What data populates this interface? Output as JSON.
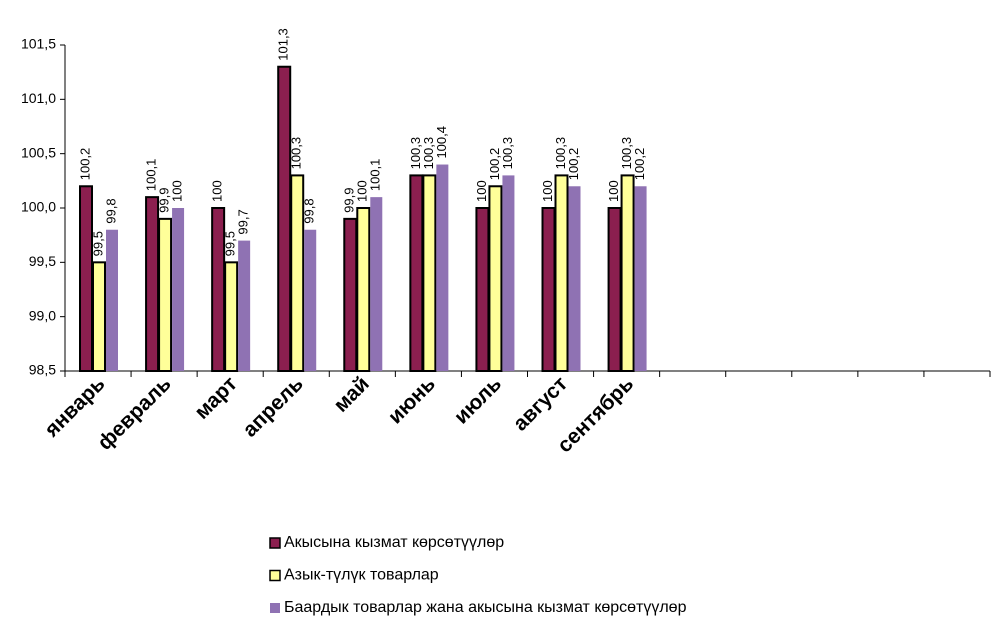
{
  "chart_data": {
    "type": "bar",
    "categories": [
      "январь",
      "февраль",
      "март",
      "апрель",
      "май",
      "июнь",
      "июль",
      "август",
      "сентябрь",
      null,
      null,
      null,
      null,
      null
    ],
    "series": [
      {
        "name": "Акысына кызмат көрсөтүүлөр",
        "color": "#8b1f4f",
        "values": [
          100.2,
          100.1,
          100,
          101.3,
          99.9,
          100.3,
          100,
          100,
          100,
          null,
          null,
          null,
          null,
          null
        ],
        "value_labels": [
          "100,2",
          "100,1",
          "100",
          "101,3",
          "99,9",
          "100,3",
          "100",
          "100",
          "100",
          null,
          null,
          null,
          null,
          null
        ]
      },
      {
        "name": "Азык-түлүк товарлар",
        "color": "#ffff99",
        "values": [
          99.5,
          99.9,
          99.5,
          100.3,
          100,
          100.3,
          100.2,
          100.3,
          100.3,
          null,
          null,
          null,
          null,
          null
        ],
        "value_labels": [
          "99,5",
          "99,9",
          "99,5",
          "100,3",
          "100",
          "100,3",
          "100,2",
          "100,3",
          "100,3",
          null,
          null,
          null,
          null,
          null
        ]
      },
      {
        "name": "Баардык товарлар жана  акысына кызмат көрсөтүүлөр",
        "color": "#8f72b3",
        "values": [
          99.8,
          100,
          99.7,
          99.8,
          100.1,
          100.4,
          100.3,
          100.2,
          100.2,
          null,
          null,
          null,
          null,
          null
        ],
        "value_labels": [
          "99,8",
          "100",
          "99,7",
          "99,8",
          "100,1",
          "100,4",
          "100,3",
          "100,2",
          "100,2",
          null,
          null,
          null,
          null,
          null
        ]
      }
    ],
    "ylim": [
      98.5,
      101.5
    ],
    "yticks": [
      {
        "value": 98.5,
        "label": "98,5"
      },
      {
        "value": 99,
        "label": "99,0"
      },
      {
        "value": 99.5,
        "label": "99,5"
      },
      {
        "value": 100,
        "label": "100,0"
      },
      {
        "value": 100.5,
        "label": "100,5"
      },
      {
        "value": 101,
        "label": "101,0"
      },
      {
        "value": 101.5,
        "label": "101,5"
      }
    ],
    "legend": "bottom"
  }
}
